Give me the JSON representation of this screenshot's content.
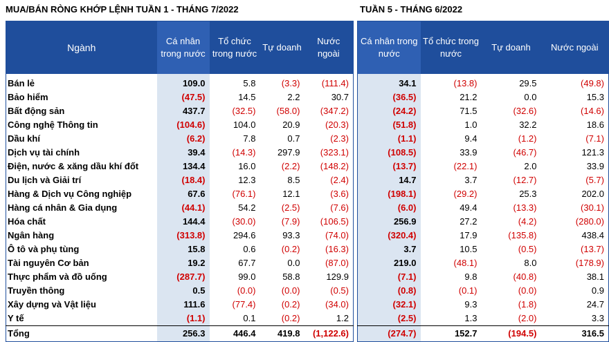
{
  "left": {
    "title": "MUA/BÁN RÒNG KHỚP LỆNH TUẦN 1 - THÁNG 7/2022",
    "headers": [
      "Ngành",
      "Cá nhân trong nước",
      "Tổ chức trong nước",
      "Tự doanh",
      "Nước ngoài"
    ],
    "rows": [
      [
        "Bán lẻ",
        "109.0",
        "5.8",
        "(3.3)",
        "(111.4)"
      ],
      [
        "Bảo hiểm",
        "(47.5)",
        "14.5",
        "2.2",
        "30.7"
      ],
      [
        "Bất động sản",
        "437.7",
        "(32.5)",
        "(58.0)",
        "(347.2)"
      ],
      [
        "Công nghệ Thông tin",
        "(104.6)",
        "104.0",
        "20.9",
        "(20.3)"
      ],
      [
        "Dầu khí",
        "(6.2)",
        "7.8",
        "0.7",
        "(2.3)"
      ],
      [
        "Dịch vụ tài chính",
        "39.4",
        "(14.3)",
        "297.9",
        "(323.1)"
      ],
      [
        "Điện, nước & xăng dầu khí đốt",
        "134.4",
        "16.0",
        "(2.2)",
        "(148.2)"
      ],
      [
        "Du lịch và Giải trí",
        "(18.4)",
        "12.3",
        "8.5",
        "(2.4)"
      ],
      [
        "Hàng & Dịch vụ Công nghiệp",
        "67.6",
        "(76.1)",
        "12.1",
        "(3.6)"
      ],
      [
        "Hàng cá nhân & Gia dụng",
        "(44.1)",
        "54.2",
        "(2.5)",
        "(7.6)"
      ],
      [
        "Hóa chất",
        "144.4",
        "(30.0)",
        "(7.9)",
        "(106.5)"
      ],
      [
        "Ngân hàng",
        "(313.8)",
        "294.6",
        "93.3",
        "(74.0)"
      ],
      [
        "Ô tô và phụ tùng",
        "15.8",
        "0.6",
        "(0.2)",
        "(16.3)"
      ],
      [
        "Tài nguyên Cơ bản",
        "19.2",
        "67.7",
        "0.0",
        "(87.0)"
      ],
      [
        "Thực phẩm và đồ uống",
        "(287.7)",
        "99.0",
        "58.8",
        "129.9"
      ],
      [
        "Truyền thông",
        "0.5",
        "(0.0)",
        "(0.0)",
        "(0.5)"
      ],
      [
        "Xây dựng và Vật liệu",
        "111.6",
        "(77.4)",
        "(0.2)",
        "(34.0)"
      ],
      [
        "Y tế",
        "(1.1)",
        "0.1",
        "(0.2)",
        "1.2"
      ]
    ],
    "total": [
      "Tổng",
      "256.3",
      "446.4",
      "419.8",
      "(1,122.6)"
    ]
  },
  "right": {
    "title": "TUẦN 5 - THÁNG 6/2022",
    "headers": [
      "Cá nhân trong nước",
      "Tổ chức trong nước",
      "Tự doanh",
      "Nước ngoài"
    ],
    "rows": [
      [
        "34.1",
        "(13.8)",
        "29.5",
        "(49.8)"
      ],
      [
        "(36.5)",
        "21.2",
        "0.0",
        "15.3"
      ],
      [
        "(24.2)",
        "71.5",
        "(32.6)",
        "(14.6)"
      ],
      [
        "(51.8)",
        "1.0",
        "32.2",
        "18.6"
      ],
      [
        "(1.1)",
        "9.4",
        "(1.2)",
        "(7.1)"
      ],
      [
        "(108.5)",
        "33.9",
        "(46.7)",
        "121.3"
      ],
      [
        "(13.7)",
        "(22.1)",
        "2.0",
        "33.9"
      ],
      [
        "14.7",
        "3.7",
        "(12.7)",
        "(5.7)"
      ],
      [
        "(198.1)",
        "(29.2)",
        "25.3",
        "202.0"
      ],
      [
        "(6.0)",
        "49.4",
        "(13.3)",
        "(30.1)"
      ],
      [
        "256.9",
        "27.2",
        "(4.2)",
        "(280.0)"
      ],
      [
        "(320.4)",
        "17.9",
        "(135.8)",
        "438.4"
      ],
      [
        "3.7",
        "10.5",
        "(0.5)",
        "(13.7)"
      ],
      [
        "219.0",
        "(48.1)",
        "8.0",
        "(178.9)"
      ],
      [
        "(7.1)",
        "9.8",
        "(40.8)",
        "38.1"
      ],
      [
        "(0.8)",
        "(0.1)",
        "(0.0)",
        "0.9"
      ],
      [
        "(32.1)",
        "9.3",
        "(1.8)",
        "24.7"
      ],
      [
        "(2.5)",
        "1.3",
        "(2.0)",
        "3.3"
      ]
    ],
    "total": [
      "(274.7)",
      "152.7",
      "(194.5)",
      "316.5"
    ]
  }
}
